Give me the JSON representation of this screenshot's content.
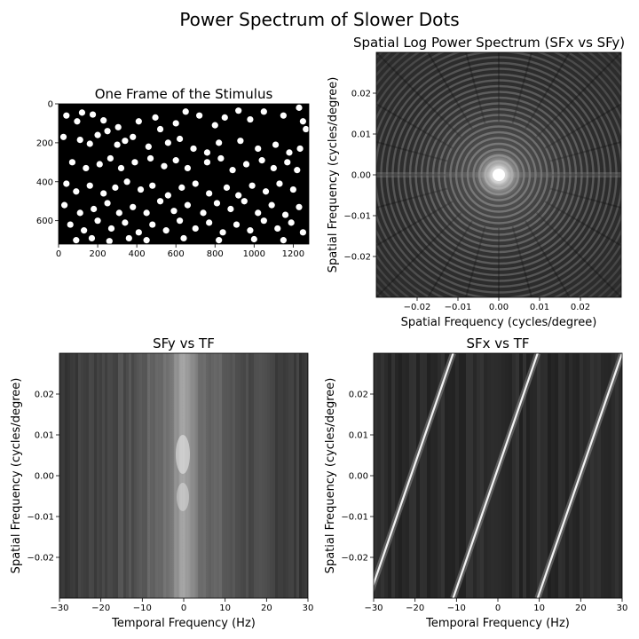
{
  "figure": {
    "title": "Power Spectrum of Slower Dots"
  },
  "chart_data": [
    {
      "type": "heatmap",
      "title": "One Frame of the Stimulus",
      "xlabel": "",
      "ylabel": "",
      "xlim": [
        0,
        1280
      ],
      "ylim": [
        720,
        0
      ],
      "xticks": [
        "0",
        "200",
        "400",
        "600",
        "800",
        "1000",
        "1200"
      ],
      "yticks": [
        "0",
        "200",
        "400",
        "600"
      ],
      "colors": {
        "background": "#000000",
        "dot": "#ffffff"
      },
      "dots": [
        [
          40,
          60
        ],
        [
          120,
          45
        ],
        [
          175,
          55
        ],
        [
          95,
          90
        ],
        [
          230,
          85
        ],
        [
          305,
          120
        ],
        [
          250,
          140
        ],
        [
          410,
          90
        ],
        [
          380,
          170
        ],
        [
          495,
          70
        ],
        [
          520,
          130
        ],
        [
          600,
          100
        ],
        [
          650,
          40
        ],
        [
          720,
          60
        ],
        [
          800,
          110
        ],
        [
          850,
          70
        ],
        [
          920,
          35
        ],
        [
          980,
          80
        ],
        [
          1050,
          40
        ],
        [
          1150,
          60
        ],
        [
          1230,
          20
        ],
        [
          1250,
          90
        ],
        [
          1265,
          130
        ],
        [
          25,
          170
        ],
        [
          110,
          185
        ],
        [
          160,
          205
        ],
        [
          200,
          160
        ],
        [
          300,
          210
        ],
        [
          340,
          190
        ],
        [
          460,
          220
        ],
        [
          560,
          200
        ],
        [
          620,
          180
        ],
        [
          690,
          230
        ],
        [
          760,
          250
        ],
        [
          820,
          200
        ],
        [
          930,
          190
        ],
        [
          1020,
          230
        ],
        [
          1110,
          210
        ],
        [
          1180,
          250
        ],
        [
          1235,
          230
        ],
        [
          70,
          300
        ],
        [
          140,
          330
        ],
        [
          210,
          310
        ],
        [
          265,
          280
        ],
        [
          320,
          330
        ],
        [
          390,
          300
        ],
        [
          470,
          280
        ],
        [
          540,
          320
        ],
        [
          600,
          290
        ],
        [
          660,
          330
        ],
        [
          760,
          300
        ],
        [
          830,
          280
        ],
        [
          890,
          340
        ],
        [
          960,
          310
        ],
        [
          1040,
          290
        ],
        [
          1100,
          330
        ],
        [
          1170,
          300
        ],
        [
          1220,
          340
        ],
        [
          40,
          410
        ],
        [
          90,
          450
        ],
        [
          160,
          420
        ],
        [
          230,
          460
        ],
        [
          290,
          430
        ],
        [
          350,
          400
        ],
        [
          420,
          440
        ],
        [
          480,
          420
        ],
        [
          560,
          470
        ],
        [
          630,
          430
        ],
        [
          700,
          410
        ],
        [
          770,
          460
        ],
        [
          860,
          430
        ],
        [
          920,
          470
        ],
        [
          990,
          420
        ],
        [
          1060,
          450
        ],
        [
          1130,
          410
        ],
        [
          1200,
          440
        ],
        [
          30,
          520
        ],
        [
          110,
          560
        ],
        [
          180,
          540
        ],
        [
          250,
          510
        ],
        [
          310,
          560
        ],
        [
          380,
          530
        ],
        [
          450,
          560
        ],
        [
          520,
          500
        ],
        [
          590,
          550
        ],
        [
          660,
          520
        ],
        [
          740,
          560
        ],
        [
          810,
          510
        ],
        [
          880,
          540
        ],
        [
          950,
          500
        ],
        [
          1020,
          560
        ],
        [
          1090,
          520
        ],
        [
          1160,
          570
        ],
        [
          1230,
          530
        ],
        [
          60,
          620
        ],
        [
          130,
          650
        ],
        [
          200,
          600
        ],
        [
          270,
          640
        ],
        [
          340,
          610
        ],
        [
          410,
          660
        ],
        [
          480,
          620
        ],
        [
          550,
          650
        ],
        [
          620,
          600
        ],
        [
          700,
          640
        ],
        [
          770,
          610
        ],
        [
          840,
          660
        ],
        [
          910,
          620
        ],
        [
          980,
          650
        ],
        [
          1050,
          600
        ],
        [
          1120,
          640
        ],
        [
          1190,
          610
        ],
        [
          1250,
          660
        ],
        [
          90,
          700
        ],
        [
          170,
          690
        ],
        [
          260,
          705
        ],
        [
          360,
          690
        ],
        [
          450,
          700
        ],
        [
          640,
          690
        ],
        [
          820,
          700
        ],
        [
          1000,
          695
        ],
        [
          1150,
          700
        ]
      ]
    },
    {
      "type": "heatmap",
      "title": "Spatial Log Power Spectrum (SFx vs SFy)",
      "xlabel": "Spatial Frequency (cycles/degree)",
      "ylabel": "Spatial Frequency (cycles/degree)",
      "xlim": [
        -0.03,
        0.03
      ],
      "ylim": [
        -0.03,
        0.03
      ],
      "xticks": [
        "−0.02",
        "−0.01",
        "0.00",
        "0.01",
        "0.02"
      ],
      "yticks": [
        "0.02",
        "0.01",
        "0.00",
        "−0.01",
        "−0.02"
      ],
      "colormap": "gray",
      "pattern": "concentric rings, bright peak at origin"
    },
    {
      "type": "heatmap",
      "title": "SFy vs TF",
      "xlabel": "Temporal Frequency (Hz)",
      "ylabel": "Spatial Frequency (cycles/degree)",
      "xlim": [
        -30,
        30
      ],
      "ylim": [
        -0.03,
        0.03
      ],
      "xticks": [
        "−30",
        "−20",
        "−10",
        "0",
        "10",
        "20",
        "30"
      ],
      "yticks": [
        "0.02",
        "0.01",
        "0.00",
        "−0.01",
        "−0.02"
      ],
      "colormap": "gray",
      "pattern": "vertical streaks with bright band at TF = 0"
    },
    {
      "type": "heatmap",
      "title": "SFx vs TF",
      "xlabel": "Temporal Frequency (Hz)",
      "ylabel": "Spatial Frequency (cycles/degree)",
      "xlim": [
        -30,
        30
      ],
      "ylim": [
        -0.03,
        0.03
      ],
      "xticks": [
        "−30",
        "−20",
        "−10",
        "0",
        "10",
        "20",
        "30"
      ],
      "yticks": [
        "0.02",
        "0.01",
        "0.00",
        "−0.01",
        "−0.02"
      ],
      "colormap": "gray",
      "pattern": "diagonal bright lines with slope, wrapping"
    }
  ]
}
